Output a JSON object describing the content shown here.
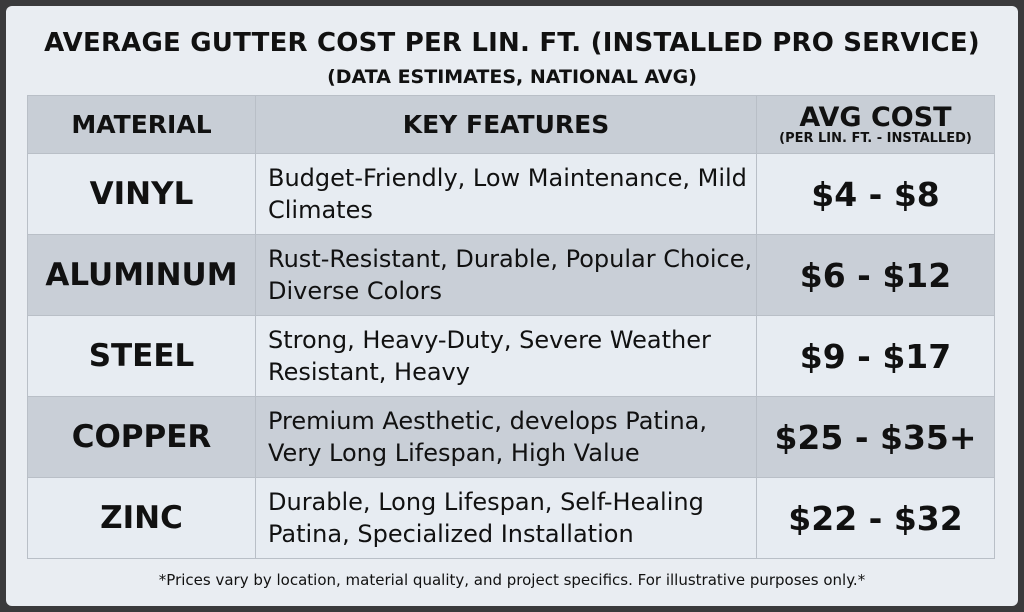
{
  "title": "AVERAGE GUTTER COST PER LIN. FT. (INSTALLED PRO SERVICE)",
  "subtitle": "(DATA ESTIMATES, NATIONAL AVG)",
  "headers": {
    "material": "MATERIAL",
    "features": "KEY FEATURES",
    "cost": "AVG COST",
    "cost_sub": "(PER LIN. FT. - INSTALLED)"
  },
  "chart_data": {
    "type": "table",
    "title": "AVERAGE GUTTER COST PER LIN. FT. (INSTALLED PRO SERVICE)",
    "columns": [
      "MATERIAL",
      "KEY FEATURES",
      "AVG COST (PER LIN. FT. - INSTALLED)"
    ],
    "rows": [
      {
        "material": "VINYL",
        "features": "Budget-Friendly, Low Maintenance, Mild Climates",
        "cost": "$4 - $8"
      },
      {
        "material": "ALUMINUM",
        "features": "Rust-Resistant, Durable, Popular Choice, Diverse Colors",
        "cost": "$6 - $12"
      },
      {
        "material": "STEEL",
        "features": "Strong, Heavy-Duty, Severe Weather Resistant, Heavy",
        "cost": "$9 - $17"
      },
      {
        "material": "COPPER",
        "features": "Premium Aesthetic, develops Patina, Very Long Lifespan, High Value",
        "cost": "$25 - $35+"
      },
      {
        "material": "ZINC",
        "features": "Durable, Long Lifespan, Self-Healing Patina, Specialized Installation",
        "cost": "$22 - $32"
      }
    ]
  },
  "footnote": "*Prices vary by location, material quality, and project specifics. For illustrative purposes only.*"
}
